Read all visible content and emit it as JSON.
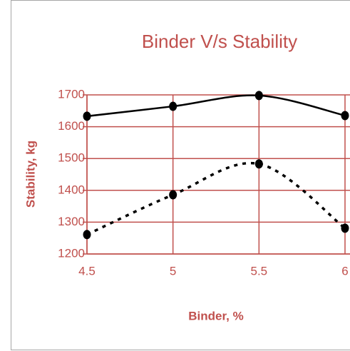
{
  "chart_data": {
    "type": "line",
    "title": "Binder V/s Stability",
    "xlabel": "Binder, %",
    "ylabel": "Stability, kg",
    "x": [
      4.5,
      5,
      5.5,
      6
    ],
    "series": [
      {
        "color": "#000000",
        "style": "solid",
        "values": [
          1633,
          1664,
          1698,
          1635
        ]
      },
      {
        "color": "#000000",
        "style": "dotted",
        "values": [
          1261,
          1386,
          1483,
          1281
        ]
      }
    ],
    "xlim": [
      4.5,
      6
    ],
    "xticks": [
      4.5,
      5,
      5.5,
      6
    ],
    "ylim": [
      1200,
      1700
    ],
    "yticks": [
      1200,
      1300,
      1400,
      1500,
      1600,
      1700
    ],
    "grid": true,
    "axis_color": "#c0504d",
    "smooth": true
  }
}
